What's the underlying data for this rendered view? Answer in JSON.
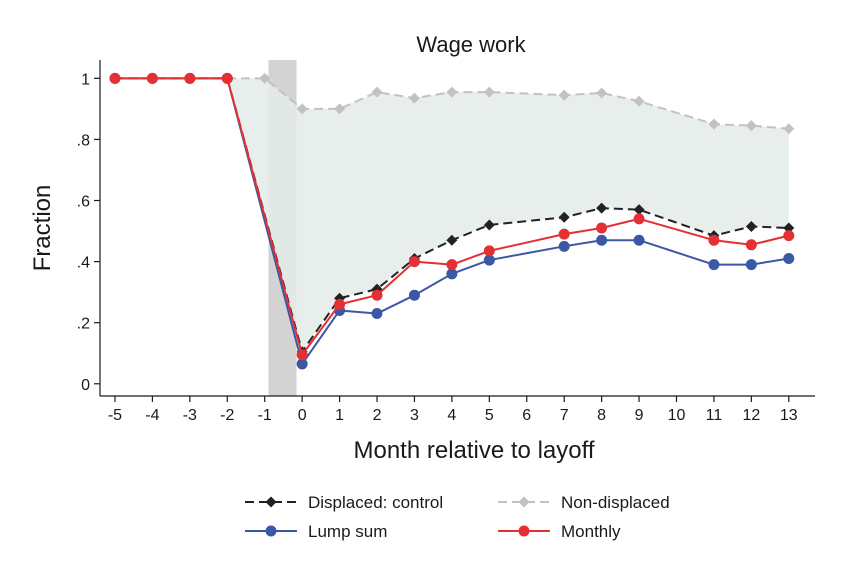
{
  "chart_data": {
    "type": "line",
    "title": "Wage work",
    "xlabel": "Month relative to layoff",
    "ylabel": "Fraction",
    "x_ticks": [
      -5,
      -4,
      -3,
      -2,
      -1,
      0,
      1,
      2,
      3,
      4,
      5,
      6,
      7,
      8,
      9,
      10,
      11,
      12,
      13
    ],
    "y_ticks": [
      0,
      0.2,
      0.4,
      0.6,
      0.8,
      1
    ],
    "y_tick_labels": [
      "0",
      ".2",
      ".4",
      ".6",
      ".8",
      "1"
    ],
    "xlim": [
      -5.4,
      13.7
    ],
    "ylim": [
      -0.04,
      1.06
    ],
    "grid": false,
    "legend_position": "bottom",
    "shaded_interval": [
      -0.9,
      -0.15
    ],
    "fill_between": [
      "Non-displaced",
      "Displaced: control"
    ],
    "series": [
      {
        "name": "Non-displaced",
        "color": "#c2c2c2",
        "line_style": "dashed",
        "marker": "diamond",
        "x": [
          -5,
          -4,
          -3,
          -2,
          -1,
          0,
          1,
          2,
          3,
          4,
          5,
          7,
          8,
          9,
          11,
          12,
          13
        ],
        "y": [
          1,
          1,
          1,
          1,
          1,
          0.9,
          0.9,
          0.955,
          0.935,
          0.955,
          0.955,
          0.945,
          0.952,
          0.925,
          0.85,
          0.845,
          0.835
        ]
      },
      {
        "name": "Displaced: control",
        "color": "#222222",
        "line_style": "dashed",
        "marker": "diamond",
        "x": [
          -5,
          -4,
          -3,
          -2,
          0,
          1,
          2,
          3,
          4,
          5,
          7,
          8,
          9,
          11,
          12,
          13
        ],
        "y": [
          1,
          1,
          1,
          1,
          0.105,
          0.28,
          0.31,
          0.41,
          0.47,
          0.52,
          0.545,
          0.575,
          0.57,
          0.485,
          0.515,
          0.51
        ]
      },
      {
        "name": "Lump sum",
        "color": "#3b58a4",
        "line_style": "solid",
        "marker": "circle",
        "x": [
          -5,
          -4,
          -3,
          -2,
          0,
          1,
          2,
          3,
          4,
          5,
          7,
          8,
          9,
          11,
          12,
          13
        ],
        "y": [
          1,
          1,
          1,
          1,
          0.065,
          0.24,
          0.23,
          0.29,
          0.36,
          0.405,
          0.45,
          0.47,
          0.47,
          0.39,
          0.39,
          0.41
        ]
      },
      {
        "name": "Monthly",
        "color": "#e33035",
        "line_style": "solid",
        "marker": "circle",
        "x": [
          -5,
          -4,
          -3,
          -2,
          0,
          1,
          2,
          3,
          4,
          5,
          7,
          8,
          9,
          11,
          12,
          13
        ],
        "y": [
          1,
          1,
          1,
          1,
          0.095,
          0.26,
          0.29,
          0.4,
          0.39,
          0.435,
          0.49,
          0.51,
          0.54,
          0.47,
          0.455,
          0.485
        ]
      }
    ],
    "legend_order": [
      "Displaced: control",
      "Non-displaced",
      "Lump sum",
      "Monthly"
    ],
    "colors": {
      "band_fill": "#e3ebe8",
      "shade": "#d3d3d3",
      "axis": "#1a1a1a"
    }
  }
}
